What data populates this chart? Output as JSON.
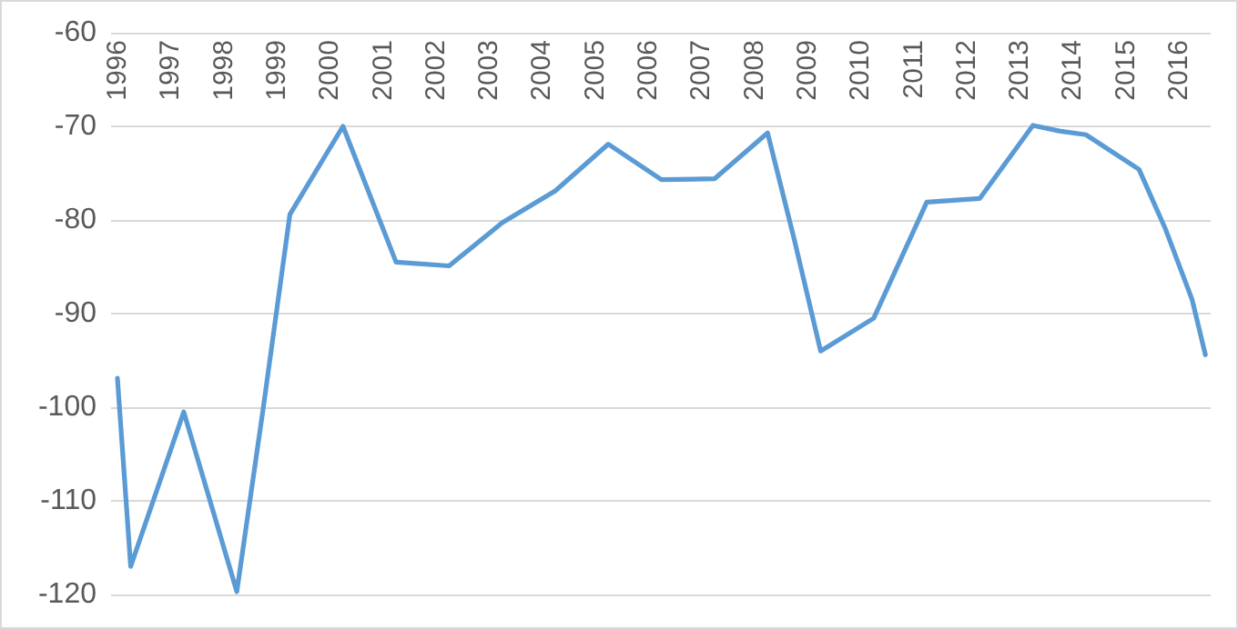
{
  "chart_data": {
    "type": "line",
    "x": [
      1996,
      1996.25,
      1997.25,
      1998.25,
      1998.75,
      1999.25,
      2000.25,
      2001.25,
      2002.25,
      2003.25,
      2004.25,
      2005.25,
      2006.25,
      2007.25,
      2008.25,
      2008.75,
      2009.25,
      2010.25,
      2011.25,
      2012.25,
      2013.25,
      2013.75,
      2014.25,
      2015.25,
      2015.75,
      2016.25,
      2016.5
    ],
    "series": [
      {
        "color": "#5b9bd5",
        "values": [
          -96.9,
          -117,
          -100.5,
          -119.7,
          -100,
          -79.4,
          -70,
          -84.5,
          -84.9,
          -80.3,
          -76.9,
          -71.9,
          -75.7,
          -75.6,
          -70.7,
          -82,
          -94,
          -90.5,
          -78.1,
          -77.7,
          -69.9,
          -70.5,
          -70.9,
          -74.6,
          -81,
          -88.5,
          -94.4
        ]
      }
    ],
    "xlim": [
      1995.88,
      2016.6
    ],
    "xticks": [
      1996,
      1997,
      1998,
      1999,
      2000,
      2001,
      2002,
      2003,
      2004,
      2005,
      2006,
      2007,
      2008,
      2009,
      2010,
      2011,
      2012,
      2013,
      2014,
      2015,
      2016
    ],
    "ylim": [
      -120,
      -60
    ],
    "yticks": [
      -120,
      -110,
      -100,
      -90,
      -80,
      -70,
      -60
    ],
    "grid": "y",
    "marker": "none",
    "line_style": "solid"
  }
}
